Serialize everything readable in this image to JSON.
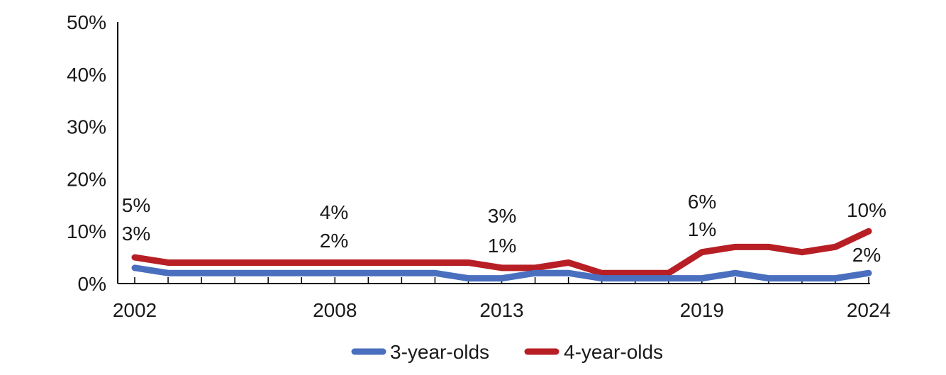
{
  "chart_data": {
    "type": "line",
    "title": "",
    "xlabel": "",
    "ylabel": "",
    "x": [
      2002,
      2003,
      2004,
      2005,
      2006,
      2007,
      2008,
      2009,
      2010,
      2011,
      2012,
      2013,
      2014,
      2015,
      2016,
      2017,
      2018,
      2019,
      2020,
      2021,
      2022,
      2023,
      2024
    ],
    "x_tick_labels": [
      "2002",
      "2008",
      "2013",
      "2019",
      "2024"
    ],
    "x_tick_values": [
      2002,
      2008,
      2013,
      2019,
      2024
    ],
    "y_tick_labels": [
      "0%",
      "10%",
      "20%",
      "30%",
      "40%",
      "50%"
    ],
    "y_tick_values": [
      0,
      10,
      20,
      30,
      40,
      50
    ],
    "ylim": [
      0,
      50
    ],
    "grid": false,
    "legend_position": "bottom-center",
    "series": [
      {
        "name": "3-year-olds",
        "color": "#4a6fbf",
        "values": [
          3,
          2,
          2,
          2,
          2,
          2,
          2,
          2,
          2,
          2,
          1,
          1,
          2,
          2,
          1,
          1,
          1,
          1,
          2,
          1,
          1,
          1,
          2
        ],
        "data_labels": [
          {
            "x": 2002,
            "text": "3%"
          },
          {
            "x": 2008,
            "text": "2%"
          },
          {
            "x": 2013,
            "text": "1%"
          },
          {
            "x": 2019,
            "text": "1%"
          },
          {
            "x": 2024,
            "text": "2%"
          }
        ]
      },
      {
        "name": "4-year-olds",
        "color": "#b71f25",
        "values": [
          5,
          4,
          4,
          4,
          4,
          4,
          4,
          4,
          4,
          4,
          4,
          3,
          3,
          4,
          2,
          2,
          2,
          6,
          7,
          7,
          6,
          7,
          10
        ],
        "data_labels": [
          {
            "x": 2002,
            "text": "5%"
          },
          {
            "x": 2008,
            "text": "4%"
          },
          {
            "x": 2013,
            "text": "3%"
          },
          {
            "x": 2019,
            "text": "6%"
          },
          {
            "x": 2024,
            "text": "10%"
          }
        ]
      }
    ]
  }
}
